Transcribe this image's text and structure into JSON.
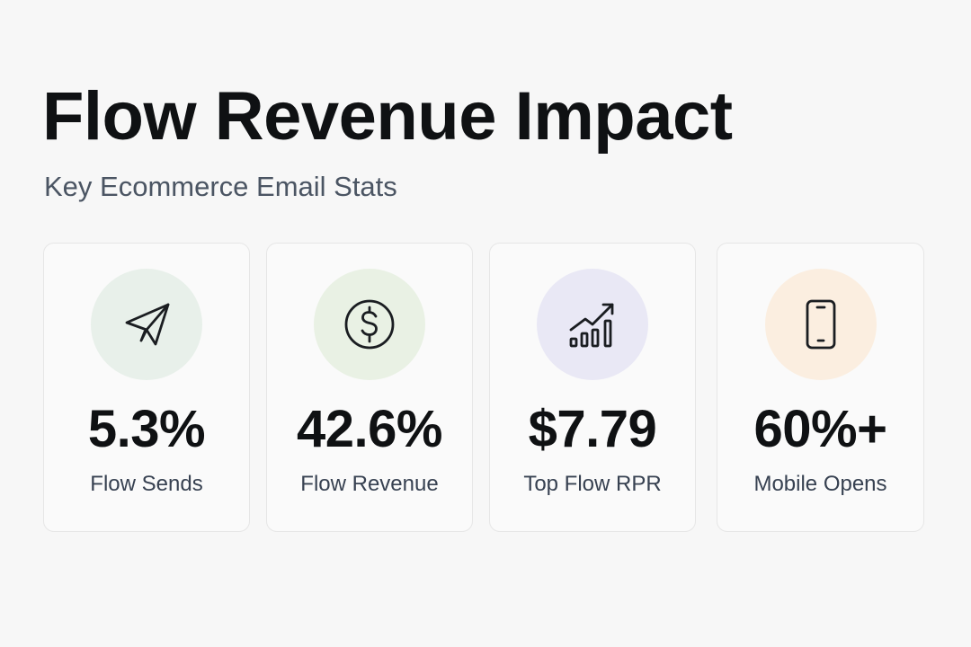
{
  "header": {
    "title": "Flow Revenue Impact",
    "subtitle": "Key Ecommerce Email Stats"
  },
  "stats": [
    {
      "value": "5.3%",
      "label": "Flow Sends",
      "icon": "paper-plane-icon",
      "icon_bg": "#e8f0ea"
    },
    {
      "value": "42.6%",
      "label": "Flow Revenue",
      "icon": "dollar-coin-icon",
      "icon_bg": "#e9f1e4"
    },
    {
      "value": "$7.79",
      "label": "Top Flow RPR",
      "icon": "growth-chart-icon",
      "icon_bg": "#e9e8f5"
    },
    {
      "value": "60%+",
      "label": "Mobile Opens",
      "icon": "smartphone-icon",
      "icon_bg": "#fbeee0"
    }
  ]
}
